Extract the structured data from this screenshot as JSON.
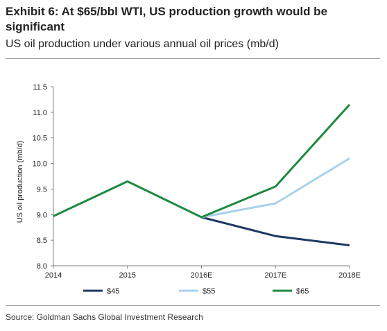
{
  "title": "Exhibit 6: At $65/bbl WTI, US production growth would be significant",
  "subtitle": "US oil production under various annual oil prices (mb/d)",
  "source": "Source: Goldman Sachs Global Investment Research",
  "chart_data": {
    "type": "line",
    "title": "",
    "xlabel": "",
    "ylabel": "US oil production (mb/d)",
    "categories": [
      "2014",
      "2015",
      "2016E",
      "2017E",
      "2018E"
    ],
    "ylim": [
      8.0,
      11.5
    ],
    "yticks": [
      "8.0",
      "8.5",
      "9.0",
      "9.5",
      "10.0",
      "10.5",
      "11.0",
      "11.5"
    ],
    "grid": false,
    "legend_position": "bottom",
    "series": [
      {
        "name": "$45",
        "color": "#1f3864",
        "values": [
          null,
          null,
          8.95,
          8.58,
          8.4
        ]
      },
      {
        "name": "$55",
        "color": "#a9d1ec",
        "values": [
          null,
          null,
          8.95,
          9.22,
          10.1
        ]
      },
      {
        "name": "$65",
        "color": "#1e8a3f",
        "values": [
          8.97,
          9.65,
          8.95,
          9.55,
          11.15
        ]
      }
    ]
  }
}
